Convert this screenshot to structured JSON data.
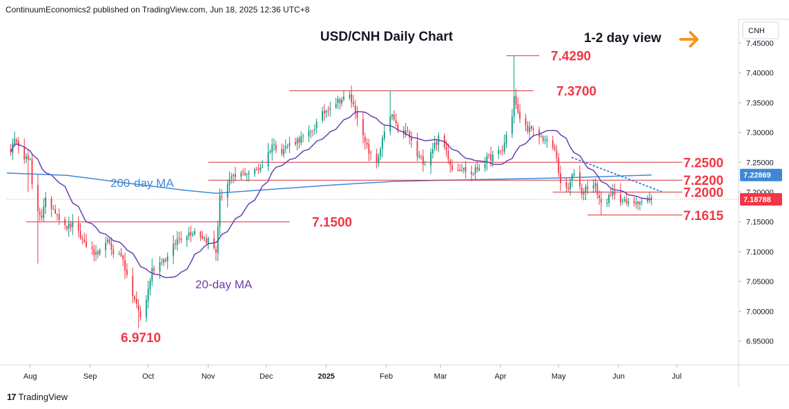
{
  "header": {
    "published_text": "ContinuumEconomics2 published on TradingView.com, Jun 18, 2025 12:36 UTC+8"
  },
  "footer": {
    "brand": "TradingView",
    "logo_glyph": "17"
  },
  "view": {
    "label": "1-2 day view",
    "arrow_icon": "arrow-right-icon",
    "arrow_color": "#f7931a"
  },
  "colors": {
    "up": "#089981",
    "down": "#f23645",
    "ma20": "#6a3fb0",
    "ma200": "#3d87d6",
    "level_line": "#d32f3a",
    "annotation": "#f23645",
    "trendline": "#3d87d6",
    "current_price_bg": "#f23645"
  },
  "chart_data": {
    "type": "candlestick",
    "title": "USD/CNH Daily Chart",
    "symbol": "CNH",
    "ylim": [
      6.91,
      7.49
    ],
    "y_ticks": [
      "7.45000",
      "7.40000",
      "7.35000",
      "7.30000",
      "7.25000",
      "7.20000",
      "7.15000",
      "7.10000",
      "7.05000",
      "7.00000",
      "6.95000"
    ],
    "x_ticks": [
      "Aug",
      "Sep",
      "Oct",
      "Nov",
      "Dec",
      "2025",
      "Feb",
      "Mar",
      "Apr",
      "May",
      "Jun",
      "Jul"
    ],
    "last_price": 7.18788,
    "last_price_label": "7.18788",
    "ma200_last": 7.22869,
    "ma200_last_label": "7.22869",
    "ma_labels": {
      "ma200": "200-day MA",
      "ma20": "20-day MA"
    },
    "levels": [
      {
        "value": 7.429,
        "label": "7.4290"
      },
      {
        "value": 7.37,
        "label": "7.3700"
      },
      {
        "value": 7.25,
        "label": "7.2500"
      },
      {
        "value": 7.22,
        "label": "7.2200"
      },
      {
        "value": 7.2,
        "label": "7.2000"
      },
      {
        "value": 7.1615,
        "label": "7.1615"
      },
      {
        "value": 7.15,
        "label": "7.1500"
      },
      {
        "value": 6.971,
        "label": "6.9710"
      }
    ],
    "close_anchors": [
      [
        "2024-07-22",
        7.272
      ],
      [
        "2024-07-25",
        7.29
      ],
      [
        "2024-07-29",
        7.26
      ],
      [
        "2024-08-01",
        7.25
      ],
      [
        "2024-08-02",
        7.21
      ],
      [
        "2024-08-05",
        7.17
      ],
      [
        "2024-08-07",
        7.16
      ],
      [
        "2024-08-09",
        7.185
      ],
      [
        "2024-08-14",
        7.17
      ],
      [
        "2024-08-19",
        7.14
      ],
      [
        "2024-08-23",
        7.145
      ],
      [
        "2024-08-28",
        7.12
      ],
      [
        "2024-09-02",
        7.1
      ],
      [
        "2024-09-05",
        7.09
      ],
      [
        "2024-09-09",
        7.12
      ],
      [
        "2024-09-13",
        7.1
      ],
      [
        "2024-09-18",
        7.09
      ],
      [
        "2024-09-20",
        7.055
      ],
      [
        "2024-09-25",
        7.01
      ],
      [
        "2024-09-27",
        6.99
      ],
      [
        "2024-09-30",
        7.02
      ],
      [
        "2024-10-03",
        7.07
      ],
      [
        "2024-10-08",
        7.085
      ],
      [
        "2024-10-11",
        7.09
      ],
      [
        "2024-10-16",
        7.12
      ],
      [
        "2024-10-21",
        7.13
      ],
      [
        "2024-10-25",
        7.135
      ],
      [
        "2024-10-31",
        7.12
      ],
      [
        "2024-11-01",
        7.12
      ],
      [
        "2024-11-05",
        7.1
      ],
      [
        "2024-11-07",
        7.19
      ],
      [
        "2024-11-12",
        7.22
      ],
      [
        "2024-11-18",
        7.23
      ],
      [
        "2024-11-25",
        7.235
      ],
      [
        "2024-11-29",
        7.245
      ],
      [
        "2024-12-04",
        7.28
      ],
      [
        "2024-12-09",
        7.27
      ],
      [
        "2024-12-13",
        7.28
      ],
      [
        "2024-12-19",
        7.29
      ],
      [
        "2024-12-24",
        7.3
      ],
      [
        "2024-12-30",
        7.33
      ],
      [
        "2025-01-03",
        7.345
      ],
      [
        "2025-01-08",
        7.355
      ],
      [
        "2025-01-13",
        7.36
      ],
      [
        "2025-01-17",
        7.33
      ],
      [
        "2025-01-20",
        7.29
      ],
      [
        "2025-01-24",
        7.26
      ],
      [
        "2025-01-27",
        7.25
      ],
      [
        "2025-01-31",
        7.3
      ],
      [
        "2025-02-04",
        7.33
      ],
      [
        "2025-02-07",
        7.3
      ],
      [
        "2025-02-12",
        7.3
      ],
      [
        "2025-02-17",
        7.26
      ],
      [
        "2025-02-21",
        7.25
      ],
      [
        "2025-02-25",
        7.275
      ],
      [
        "2025-02-28",
        7.29
      ],
      [
        "2025-03-04",
        7.27
      ],
      [
        "2025-03-07",
        7.24
      ],
      [
        "2025-03-12",
        7.24
      ],
      [
        "2025-03-17",
        7.23
      ],
      [
        "2025-03-20",
        7.24
      ],
      [
        "2025-03-25",
        7.255
      ],
      [
        "2025-03-28",
        7.26
      ],
      [
        "2025-04-02",
        7.27
      ],
      [
        "2025-04-04",
        7.295
      ],
      [
        "2025-04-07",
        7.33
      ],
      [
        "2025-04-08",
        7.36
      ],
      [
        "2025-04-10",
        7.33
      ],
      [
        "2025-04-14",
        7.31
      ],
      [
        "2025-04-18",
        7.3
      ],
      [
        "2025-04-23",
        7.29
      ],
      [
        "2025-04-28",
        7.275
      ],
      [
        "2025-04-30",
        7.26
      ],
      [
        "2025-05-02",
        7.21
      ],
      [
        "2025-05-06",
        7.205
      ],
      [
        "2025-05-09",
        7.235
      ],
      [
        "2025-05-13",
        7.2
      ],
      [
        "2025-05-16",
        7.21
      ],
      [
        "2025-05-20",
        7.21
      ],
      [
        "2025-05-23",
        7.18
      ],
      [
        "2025-05-27",
        7.19
      ],
      [
        "2025-05-30",
        7.2
      ],
      [
        "2025-06-03",
        7.185
      ],
      [
        "2025-06-06",
        7.18
      ],
      [
        "2025-06-10",
        7.185
      ],
      [
        "2025-06-13",
        7.185
      ],
      [
        "2025-06-18",
        7.188
      ]
    ],
    "wick_extremes": [
      [
        "2024-08-05",
        "low",
        7.08
      ],
      [
        "2024-07-31",
        "low",
        7.2
      ],
      [
        "2024-09-26",
        "low",
        6.971
      ],
      [
        "2024-11-05",
        "low",
        7.085
      ],
      [
        "2025-01-13",
        "high",
        7.37
      ],
      [
        "2025-02-03",
        "high",
        7.37
      ],
      [
        "2025-04-08",
        "high",
        7.429
      ],
      [
        "2025-05-12",
        "high",
        7.245
      ],
      [
        "2025-05-23",
        "low",
        7.1615
      ],
      [
        "2025-06-02",
        "high",
        7.215
      ]
    ]
  }
}
